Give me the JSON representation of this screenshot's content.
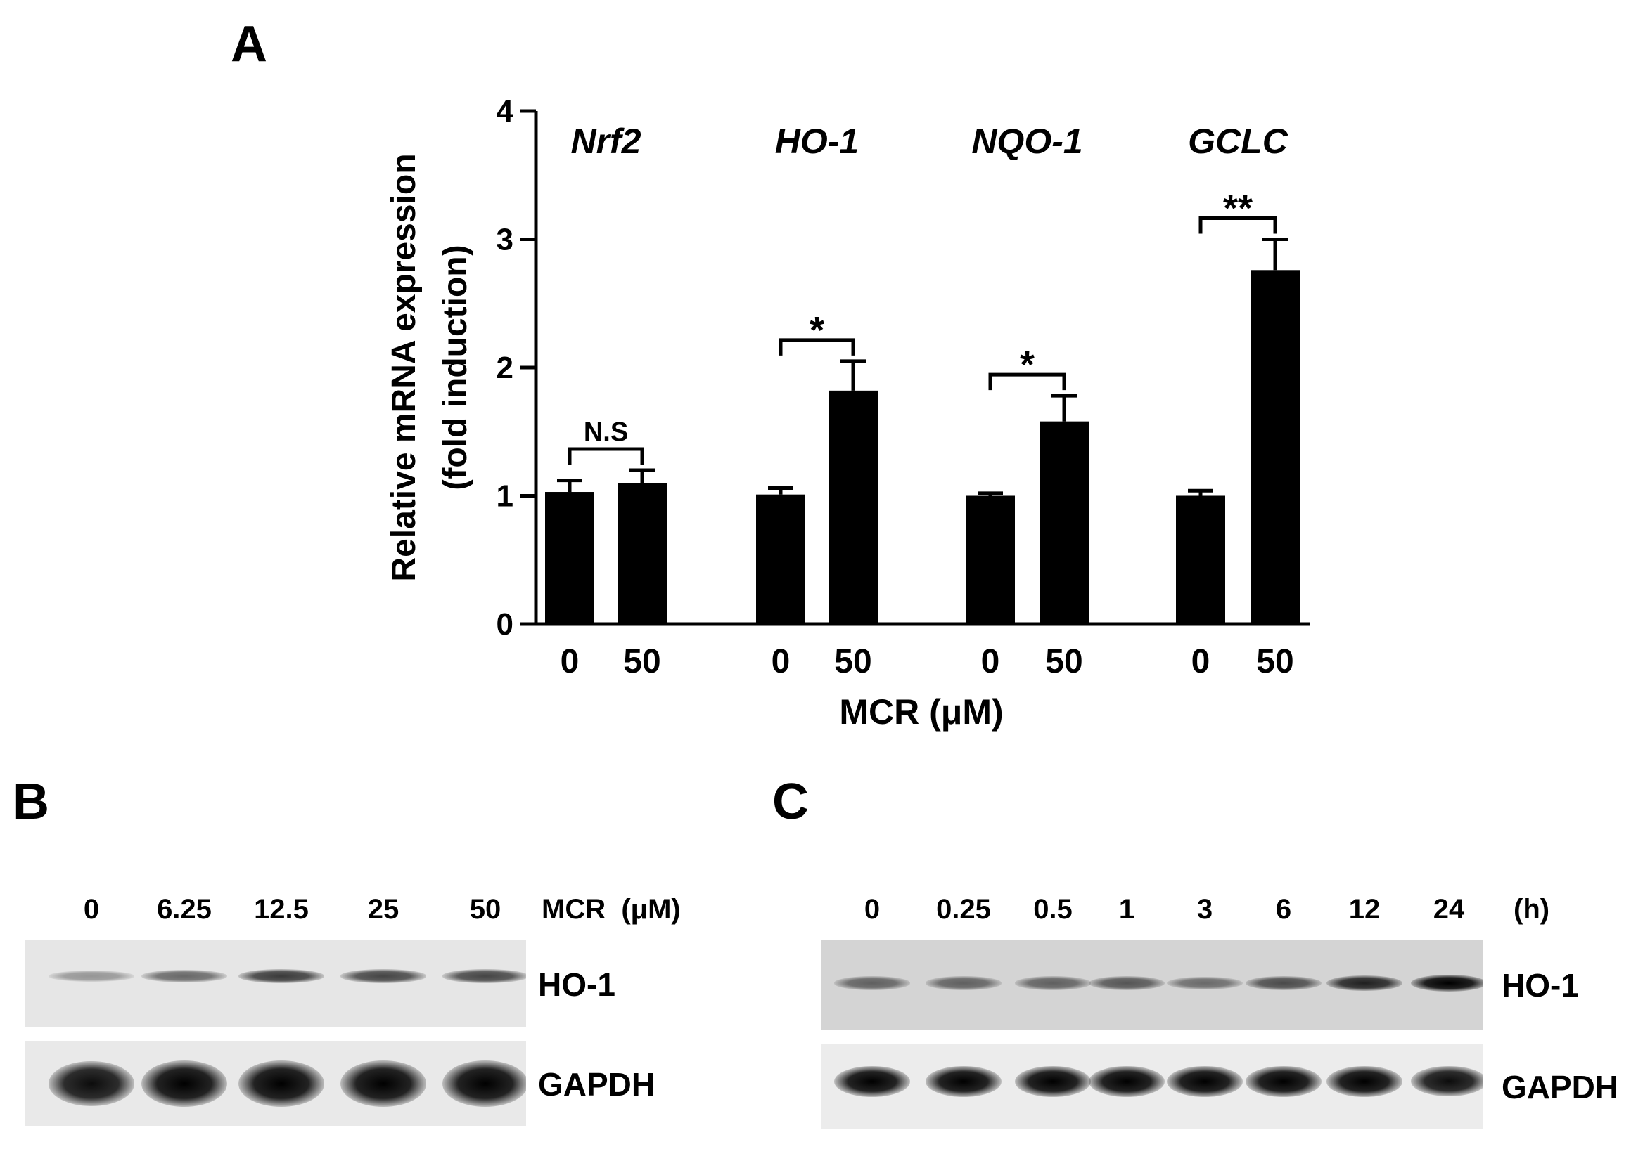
{
  "panels": {
    "a": {
      "letter": "A"
    },
    "b": {
      "letter": "B"
    },
    "c": {
      "letter": "C"
    }
  },
  "chart_data": {
    "type": "bar",
    "ylabel_lines": [
      "Relative mRNA expression",
      "(fold induction)"
    ],
    "xlabel": "MCR (μM)",
    "ylim": [
      0,
      4
    ],
    "yticks": [
      "0",
      "1",
      "2",
      "3",
      "4"
    ],
    "groups": [
      {
        "gene": "Nrf2",
        "doses": [
          "0",
          "50"
        ],
        "values": [
          1.03,
          1.1
        ],
        "errors": [
          0.09,
          0.1
        ],
        "significance": "N.S"
      },
      {
        "gene": "HO-1",
        "doses": [
          "0",
          "50"
        ],
        "values": [
          1.01,
          1.82
        ],
        "errors": [
          0.05,
          0.23
        ],
        "significance": "*"
      },
      {
        "gene": "NQO-1",
        "doses": [
          "0",
          "50"
        ],
        "values": [
          1.0,
          1.58
        ],
        "errors": [
          0.02,
          0.2
        ],
        "significance": "*"
      },
      {
        "gene": "GCLC",
        "doses": [
          "0",
          "50"
        ],
        "values": [
          1.0,
          2.76
        ],
        "errors": [
          0.04,
          0.24
        ],
        "significance": "**"
      }
    ],
    "bar_color": "#000000"
  },
  "blot_b": {
    "lanes": [
      "0",
      "6.25",
      "12.5",
      "25",
      "50"
    ],
    "condition_label": "MCR  (μM)",
    "bands": [
      "HO-1",
      "GAPDH"
    ],
    "ho1_intensity": [
      0.35,
      0.55,
      0.75,
      0.7,
      0.7
    ],
    "gapdh_intensity": [
      0.95,
      1.0,
      1.0,
      1.0,
      1.0
    ]
  },
  "blot_c": {
    "lanes": [
      "0",
      "0.25",
      "0.5",
      "1",
      "3",
      "6",
      "12",
      "24"
    ],
    "condition_label": "(h)",
    "bands": [
      "HO-1",
      "GAPDH"
    ],
    "ho1_intensity": [
      0.55,
      0.55,
      0.55,
      0.6,
      0.5,
      0.65,
      0.85,
      1.0
    ],
    "gapdh_intensity": [
      1.0,
      1.0,
      1.0,
      1.0,
      1.0,
      1.0,
      1.0,
      0.95
    ]
  }
}
